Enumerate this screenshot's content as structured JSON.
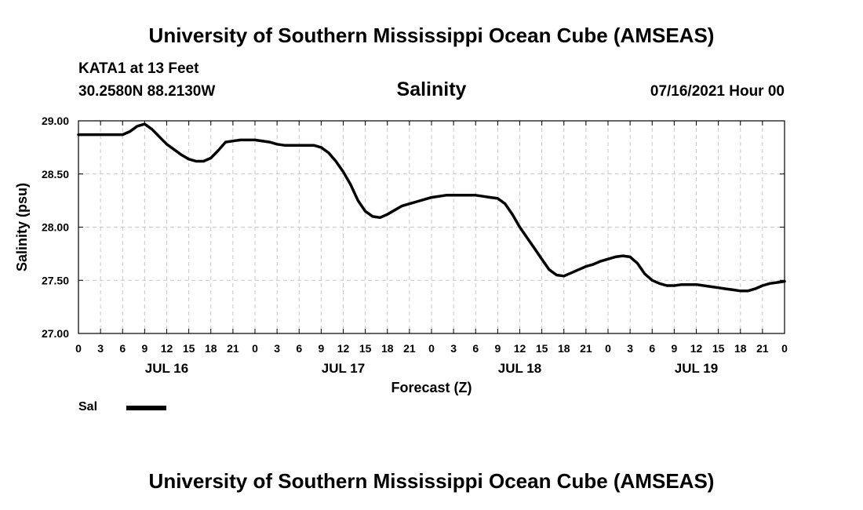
{
  "header": {
    "title": "University of Southern Mississippi Ocean Cube (AMSEAS)",
    "station": "KATA1 at 13 Feet",
    "coordinates": "30.2580N  88.2130W",
    "variable": "Salinity",
    "datetime": "07/16/2021 Hour 00"
  },
  "footer": {
    "title": "University of Southern Mississippi Ocean Cube (AMSEAS)"
  },
  "legend": {
    "series_label": "Sal"
  },
  "chart_data": {
    "type": "line",
    "title": "Salinity",
    "xlabel": "Forecast (Z)",
    "ylabel": "Salinity (psu)",
    "ylim": [
      27.0,
      29.0
    ],
    "yticks": [
      "29.00",
      "28.50",
      "28.00",
      "27.50",
      "27.00"
    ],
    "ytick_values": [
      29.0,
      28.5,
      28.0,
      27.5,
      27.0
    ],
    "xlim": [
      0,
      96
    ],
    "xtick_hours": [
      0,
      3,
      6,
      9,
      12,
      15,
      18,
      21,
      24,
      27,
      30,
      33,
      36,
      39,
      42,
      45,
      48,
      51,
      54,
      57,
      60,
      63,
      66,
      69,
      72,
      75,
      78,
      81,
      84,
      87,
      90,
      93,
      96
    ],
    "xtick_labels": [
      "0",
      "3",
      "6",
      "9",
      "12",
      "15",
      "18",
      "21",
      "0",
      "3",
      "6",
      "9",
      "12",
      "15",
      "18",
      "21",
      "0",
      "3",
      "6",
      "9",
      "12",
      "15",
      "18",
      "21",
      "0",
      "3",
      "6",
      "9",
      "12",
      "15",
      "18",
      "21",
      "0"
    ],
    "day_labels": [
      {
        "label": "JUL 16",
        "hour": 12
      },
      {
        "label": "JUL 17",
        "hour": 36
      },
      {
        "label": "JUL 18",
        "hour": 60
      },
      {
        "label": "JUL 19",
        "hour": 84
      }
    ],
    "grid": true,
    "series": [
      {
        "name": "Sal",
        "x": [
          0,
          3,
          6,
          7,
          8,
          9,
          10,
          11,
          12,
          13,
          14,
          15,
          16,
          17,
          18,
          19,
          20,
          21,
          22,
          24,
          26,
          27,
          28,
          30,
          32,
          33,
          34,
          35,
          36,
          37,
          38,
          39,
          40,
          41,
          42,
          43,
          44,
          45,
          46,
          48,
          50,
          51,
          52,
          54,
          55,
          56,
          57,
          58,
          59,
          60,
          61,
          62,
          63,
          64,
          65,
          66,
          67,
          68,
          69,
          70,
          71,
          72,
          73,
          74,
          75,
          76,
          77,
          78,
          79,
          80,
          81,
          82,
          83,
          84,
          85,
          86,
          87,
          88,
          89,
          90,
          91,
          92,
          93,
          94,
          95,
          96
        ],
        "values": [
          28.87,
          28.87,
          28.87,
          28.9,
          28.95,
          28.97,
          28.92,
          28.85,
          28.78,
          28.73,
          28.68,
          28.64,
          28.62,
          28.62,
          28.65,
          28.72,
          28.8,
          28.81,
          28.82,
          28.82,
          28.8,
          28.78,
          28.77,
          28.77,
          28.77,
          28.75,
          28.7,
          28.62,
          28.52,
          28.4,
          28.25,
          28.15,
          28.1,
          28.09,
          28.12,
          28.16,
          28.2,
          28.22,
          28.24,
          28.28,
          28.3,
          28.3,
          28.3,
          28.3,
          28.29,
          28.28,
          28.27,
          28.22,
          28.12,
          28.0,
          27.9,
          27.8,
          27.7,
          27.6,
          27.55,
          27.54,
          27.57,
          27.6,
          27.63,
          27.65,
          27.68,
          27.7,
          27.72,
          27.73,
          27.72,
          27.66,
          27.56,
          27.5,
          27.47,
          27.45,
          27.45,
          27.46,
          27.46,
          27.46,
          27.45,
          27.44,
          27.43,
          27.42,
          27.41,
          27.4,
          27.4,
          27.42,
          27.45,
          27.47,
          27.48,
          27.49
        ]
      }
    ]
  }
}
